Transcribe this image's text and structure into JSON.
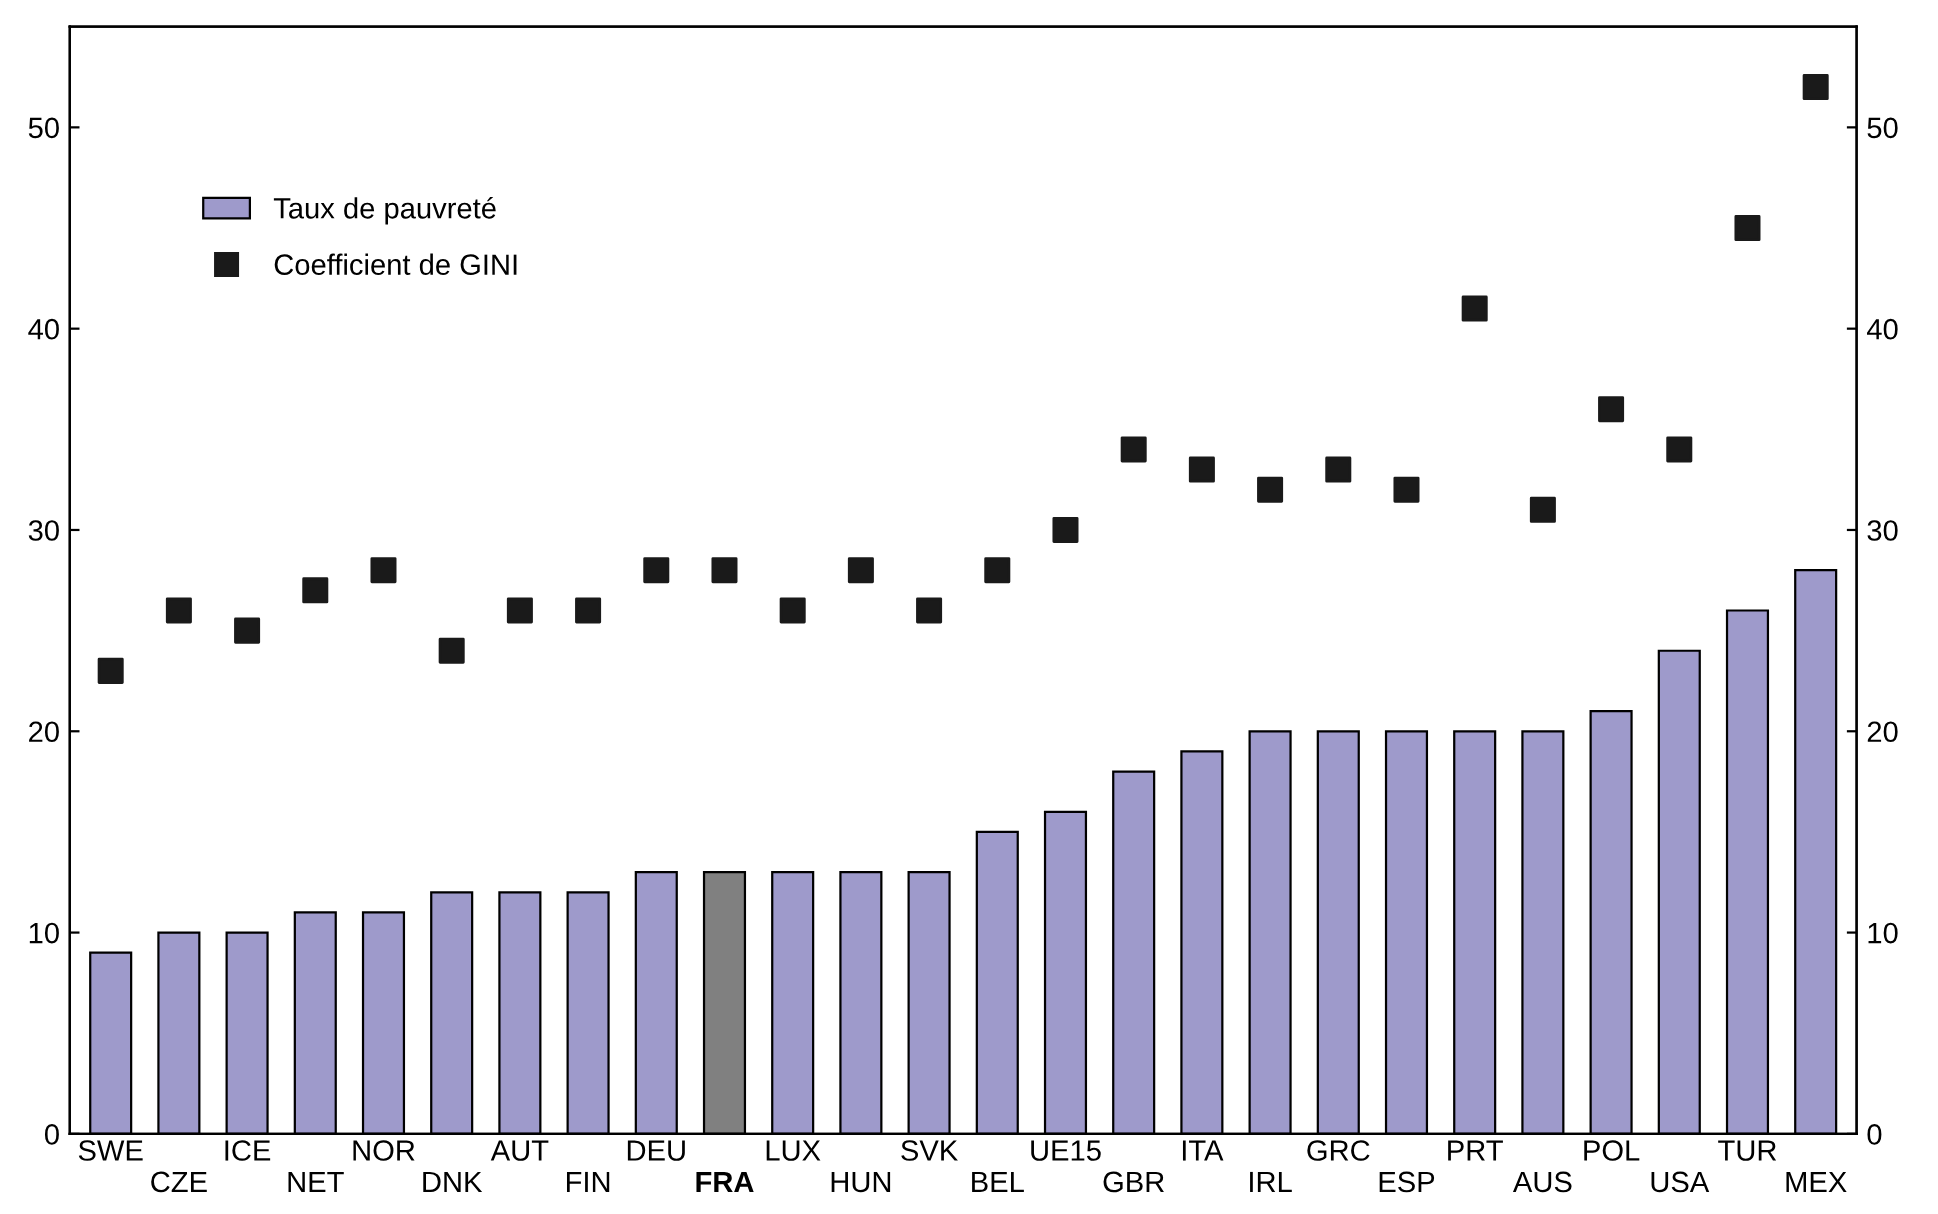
{
  "chart_data": {
    "type": "bar",
    "categories": [
      "SWE",
      "CZE",
      "ICE",
      "NET",
      "NOR",
      "DNK",
      "AUT",
      "FIN",
      "DEU",
      "FRA",
      "LUX",
      "HUN",
      "SVK",
      "BEL",
      "UE15",
      "GBR",
      "ITA",
      "IRL",
      "GRC",
      "ESP",
      "PRT",
      "AUS",
      "POL",
      "USA",
      "TUR",
      "MEX"
    ],
    "series": [
      {
        "name": "Taux de pauvreté",
        "colors": [
          "#9e9acb",
          "#9e9acb",
          "#9e9acb",
          "#9e9acb",
          "#9e9acb",
          "#9e9acb",
          "#9e9acb",
          "#9e9acb",
          "#9e9acb",
          "#808080",
          "#9e9acb",
          "#9e9acb",
          "#9e9acb",
          "#9e9acb",
          "#9e9acb",
          "#9e9acb",
          "#9e9acb",
          "#9e9acb",
          "#9e9acb",
          "#9e9acb",
          "#9e9acb",
          "#9e9acb",
          "#9e9acb",
          "#9e9acb",
          "#9e9acb",
          "#9e9acb"
        ],
        "values": [
          9,
          10,
          10,
          11,
          11,
          12,
          12,
          12,
          13,
          13,
          13,
          13,
          13,
          15,
          16,
          18,
          19,
          20,
          20,
          20,
          20,
          20,
          21,
          24,
          26,
          28
        ]
      },
      {
        "name": "Coefficient de GINI",
        "type": "scatter",
        "marker": "square",
        "color": "#1a1a1a",
        "values": [
          23,
          26,
          25,
          27,
          28,
          24,
          26,
          26,
          28,
          28,
          26,
          28,
          26,
          28,
          30,
          34,
          33,
          32,
          33,
          32,
          41,
          31,
          36,
          34,
          45,
          52
        ]
      }
    ],
    "ylim": [
      0,
      55
    ],
    "yticks": [
      0,
      10,
      20,
      30,
      40,
      50
    ],
    "y2lim": [
      0,
      55
    ],
    "y2ticks": [
      0,
      10,
      20,
      30,
      40,
      50
    ],
    "grid": false,
    "legend": "top left"
  }
}
